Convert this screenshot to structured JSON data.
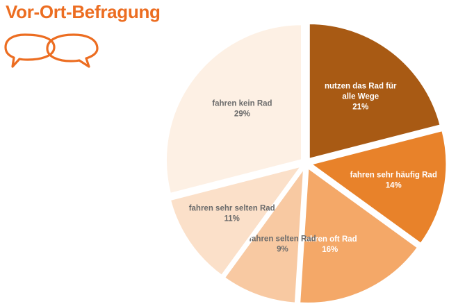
{
  "page": {
    "title": "Vor-Ort-Befragung",
    "accent_color": "#ec6d21",
    "logo_icon": "speech-bubbles-icon"
  },
  "chart_data": {
    "type": "pie",
    "title": "",
    "start": "12 o'clock",
    "direction": "clockwise",
    "exploded": true,
    "slices": [
      {
        "label": "nutzen das Rad für alle Wege",
        "value": 21,
        "value_label": "21%",
        "color": "#a85a14",
        "text_color": "#ffffff"
      },
      {
        "label": "fahren sehr häufig Rad",
        "value": 14,
        "value_label": "14%",
        "color": "#e8822a",
        "text_color": "#ffffff"
      },
      {
        "label": "fahren oft Rad",
        "value": 16,
        "value_label": "16%",
        "color": "#f4a868",
        "text_color": "#ffffff"
      },
      {
        "label": "fahren selten Rad",
        "value": 9,
        "value_label": "9%",
        "color": "#f8c9a2",
        "text_color": "#6b6b6b"
      },
      {
        "label": "fahren sehr selten Rad",
        "value": 11,
        "value_label": "11%",
        "color": "#fbe0c9",
        "text_color": "#6b6b6b"
      },
      {
        "label": "fahren kein Rad",
        "value": 29,
        "value_label": "29%",
        "color": "#fdf0e4",
        "text_color": "#6b6b6b"
      }
    ]
  }
}
